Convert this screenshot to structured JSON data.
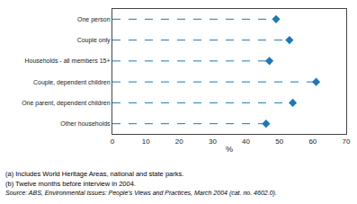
{
  "chart_data": {
    "type": "lollipop",
    "orientation": "horizontal",
    "categories": [
      "Other households",
      "One parent, dependent children",
      "Couple, dependent children",
      "Households - all members 15+",
      "Couple only",
      "One person"
    ],
    "values": [
      46,
      54,
      61,
      47,
      53,
      49
    ],
    "xlim": [
      0,
      70
    ],
    "xticks": [
      0,
      10,
      20,
      30,
      40,
      50,
      60,
      70
    ],
    "xlabel": "%",
    "marker": "diamond",
    "line_style": "dashed",
    "grid": false,
    "annotations": [
      "(a) Includes World Heritage Areas, national and state parks.",
      "(b) Twelve months before interview in 2004.",
      "Source: ABS, Environmental Issues: People’s Views and Practices, March 2004 (cat. no. 4602.0)."
    ]
  }
}
